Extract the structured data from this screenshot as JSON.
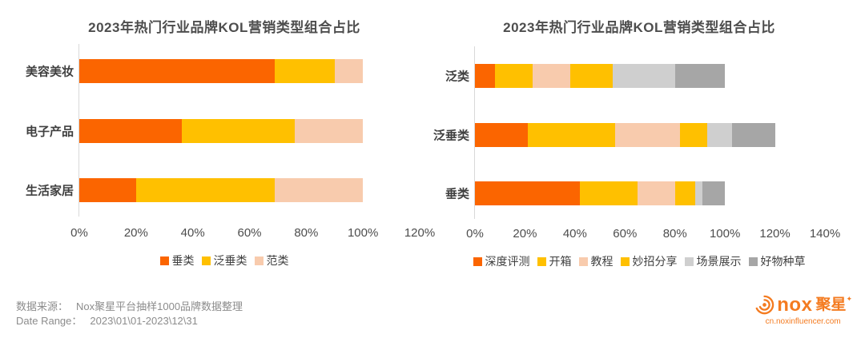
{
  "chart_data": [
    {
      "type": "bar",
      "orientation": "horizontal",
      "stacked": true,
      "title": "2023年热门行业品牌KOL营销类型组合占比",
      "categories": [
        "美容美妆",
        "电子产品",
        "生活家居"
      ],
      "series": [
        {
          "name": "垂类",
          "color": "#fb6500",
          "values": [
            69,
            36,
            20
          ]
        },
        {
          "name": "泛垂类",
          "color": "#ffc000",
          "values": [
            21,
            40,
            49
          ]
        },
        {
          "name": "范类",
          "color": "#f8cbad",
          "values": [
            10,
            24,
            31
          ]
        }
      ],
      "axis_max": 120,
      "tick_labels": [
        "0%",
        "20%",
        "40%",
        "60%",
        "80%",
        "100%",
        "120%"
      ],
      "grid": false,
      "legend_position": "bottom"
    },
    {
      "type": "bar",
      "orientation": "horizontal",
      "stacked": true,
      "title": "2023年热门行业品牌KOL营销类型组合占比",
      "categories": [
        "泛类",
        "泛垂类",
        "垂类"
      ],
      "series": [
        {
          "name": "深度评测",
          "color": "#fb6500",
          "values": [
            8,
            21,
            42
          ]
        },
        {
          "name": "开箱",
          "color": "#ffc000",
          "values": [
            15,
            35,
            23
          ]
        },
        {
          "name": "教程",
          "color": "#f8cbad",
          "values": [
            15,
            26,
            15
          ]
        },
        {
          "name": "妙招分享",
          "color": "#ffc000",
          "values": [
            17,
            11,
            8
          ]
        },
        {
          "name": "场景展示",
          "color": "#cfcfcf",
          "values": [
            25,
            10,
            3
          ]
        },
        {
          "name": "好物种草",
          "color": "#a6a6a6",
          "values": [
            20,
            17,
            9
          ]
        }
      ],
      "axis_max": 140,
      "tick_labels": [
        "0%",
        "20%",
        "40%",
        "60%",
        "80%",
        "100%",
        "120%",
        "140%"
      ],
      "grid": false,
      "legend_position": "bottom"
    }
  ],
  "footer": {
    "source_label": "数据来源：",
    "source_text": "Nox聚星平台抽样1000品牌数据整理",
    "range_label": "Date Range：",
    "range_text": "2023\\01\\01-2023\\12\\31"
  },
  "logo": {
    "brand": "nox",
    "brand_cn": "聚星",
    "star": "✦",
    "url": "cn.noxinfluencer.com",
    "color": "#f47b20"
  },
  "colors": {
    "title_text": "#4d4d4d",
    "category_text": "#404040",
    "tick_text": "#4d4d4d",
    "axis_line": "#d9d9d9",
    "footer_text": "#8c8c8c"
  }
}
